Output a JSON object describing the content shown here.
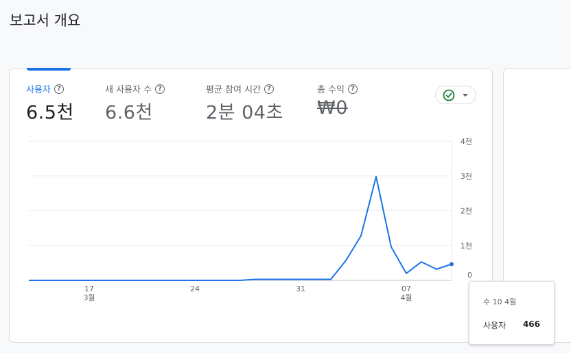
{
  "page": {
    "title": "보고서 개요"
  },
  "metrics": [
    {
      "label": "사용자",
      "value": "6.5천",
      "active": true
    },
    {
      "label": "새 사용자 수",
      "value": "6.6천",
      "active": false
    },
    {
      "label": "평균 참여 시간",
      "value": "2분 04초",
      "active": false
    },
    {
      "label": "총 수익",
      "value": "₩0",
      "active": false,
      "strikethrough": true
    }
  ],
  "help_glyph": "?",
  "compare": {
    "icon": "check-circle-icon",
    "color": "#188038"
  },
  "colors": {
    "accent": "#1a73e8",
    "grid": "#e8eaed"
  },
  "chart_data": {
    "type": "line",
    "series": [
      {
        "name": "사용자",
        "points": [
          [
            "2024-03-13",
            0
          ],
          [
            "2024-03-14",
            0
          ],
          [
            "2024-03-15",
            0
          ],
          [
            "2024-03-16",
            0
          ],
          [
            "2024-03-17",
            0
          ],
          [
            "2024-03-18",
            0
          ],
          [
            "2024-03-19",
            0
          ],
          [
            "2024-03-20",
            0
          ],
          [
            "2024-03-21",
            0
          ],
          [
            "2024-03-22",
            0
          ],
          [
            "2024-03-23",
            0
          ],
          [
            "2024-03-24",
            0
          ],
          [
            "2024-03-25",
            0
          ],
          [
            "2024-03-26",
            0
          ],
          [
            "2024-03-27",
            0
          ],
          [
            "2024-03-28",
            30
          ],
          [
            "2024-03-29",
            30
          ],
          [
            "2024-03-30",
            30
          ],
          [
            "2024-03-31",
            30
          ],
          [
            "2024-04-01",
            30
          ],
          [
            "2024-04-02",
            30
          ],
          [
            "2024-04-03",
            570
          ],
          [
            "2024-04-04",
            1280
          ],
          [
            "2024-04-05",
            2980
          ],
          [
            "2024-04-06",
            960
          ],
          [
            "2024-04-07",
            200
          ],
          [
            "2024-04-08",
            530
          ],
          [
            "2024-04-09",
            320
          ],
          [
            "2024-04-10",
            466
          ]
        ]
      }
    ],
    "y_ticks": [
      "4천",
      "3천",
      "2천",
      "1천",
      "0"
    ],
    "y_tick_values": [
      4000,
      3000,
      2000,
      1000,
      0
    ],
    "x_ticks": [
      {
        "date": "2024-03-17",
        "day": "17",
        "month": "3월"
      },
      {
        "date": "2024-03-24",
        "day": "24",
        "month": ""
      },
      {
        "date": "2024-03-31",
        "day": "31",
        "month": ""
      },
      {
        "date": "2024-04-07",
        "day": "07",
        "month": "4월"
      }
    ],
    "ylim": [
      0,
      4000
    ],
    "xlim": [
      "2024-03-13",
      "2024-04-10"
    ],
    "grid": true,
    "y_axis_position": "right"
  },
  "tooltip": {
    "date": "수 10 4월",
    "label": "사용자",
    "value": "466"
  }
}
